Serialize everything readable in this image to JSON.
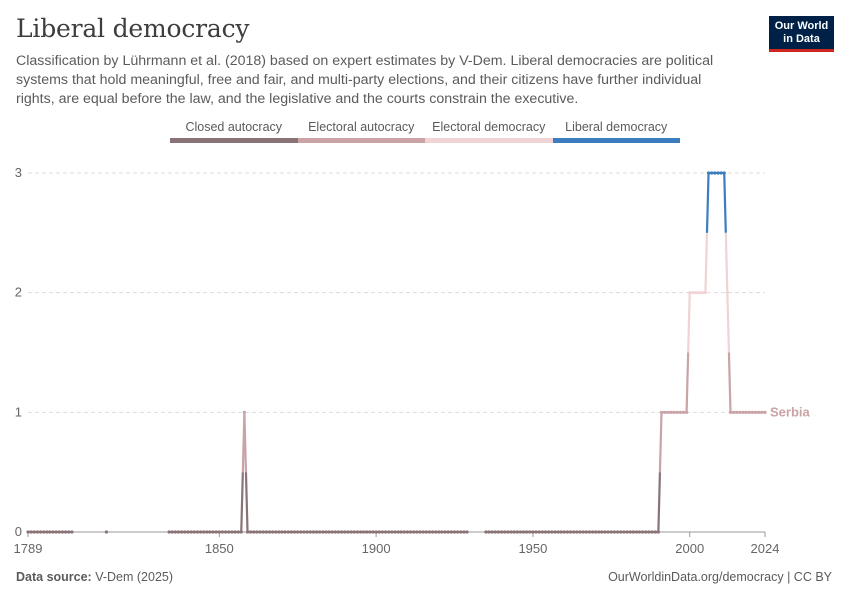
{
  "header": {
    "title": "Liberal democracy",
    "subtitle": "Classification by Lührmann et al. (2018) based on expert estimates by V-Dem. Liberal democracies are political systems that hold meaningful, free and fair, and multi-party elections, and their citizens have further individual rights, are equal before the law, and the legislative and the courts constrain the executive."
  },
  "logo": {
    "line1": "Our World",
    "line2": "in Data"
  },
  "footer": {
    "source_label": "Data source:",
    "source_value": "V-Dem (2025)",
    "right": "OurWorldinData.org/democracy | CC BY"
  },
  "chart_data": {
    "type": "line",
    "title": "Liberal democracy",
    "legend_placement": "top",
    "grid": "horizontal-dashed",
    "categories": [
      {
        "value": 0,
        "label": "Closed autocracy",
        "color": "#8a7376"
      },
      {
        "value": 1,
        "label": "Electoral autocracy",
        "color": "#c9a3a5"
      },
      {
        "value": 2,
        "label": "Electoral democracy",
        "color": "#f0d3d5"
      },
      {
        "value": 3,
        "label": "Liberal democracy",
        "color": "#3b7dbf"
      }
    ],
    "xlim": [
      1789,
      2024
    ],
    "ylim": [
      0,
      3
    ],
    "x_ticks": [
      1789,
      1850,
      1900,
      1950,
      2000,
      2024
    ],
    "x_tick_labels": [
      "1789",
      "1850",
      "1900",
      "1950",
      "2000",
      "2024"
    ],
    "y_ticks": [
      0,
      1,
      2,
      3
    ],
    "y_tick_labels": [
      "0",
      "1",
      "2",
      "3"
    ],
    "series": [
      {
        "name": "Serbia",
        "color": "#c9a3a5",
        "segments": [
          {
            "x": [
              1789,
              1803
            ],
            "y": 0
          },
          {
            "x": [
              1814,
              1814
            ],
            "y": 0
          },
          {
            "x": [
              1834,
              1857
            ],
            "y": 0
          },
          {
            "x": [
              1858,
              1858
            ],
            "y": 1
          },
          {
            "x": [
              1859,
              1929
            ],
            "y": 0
          },
          {
            "x": [
              1935,
              1990
            ],
            "y": 0
          },
          {
            "x": [
              1991,
              1999
            ],
            "y": 1
          },
          {
            "x": [
              2000,
              2005
            ],
            "y": 2
          },
          {
            "x": [
              2006,
              2011
            ],
            "y": 3
          },
          {
            "x": [
              2012,
              2012
            ],
            "y": 2
          },
          {
            "x": [
              2013,
              2024
            ],
            "y": 1
          }
        ]
      }
    ]
  }
}
